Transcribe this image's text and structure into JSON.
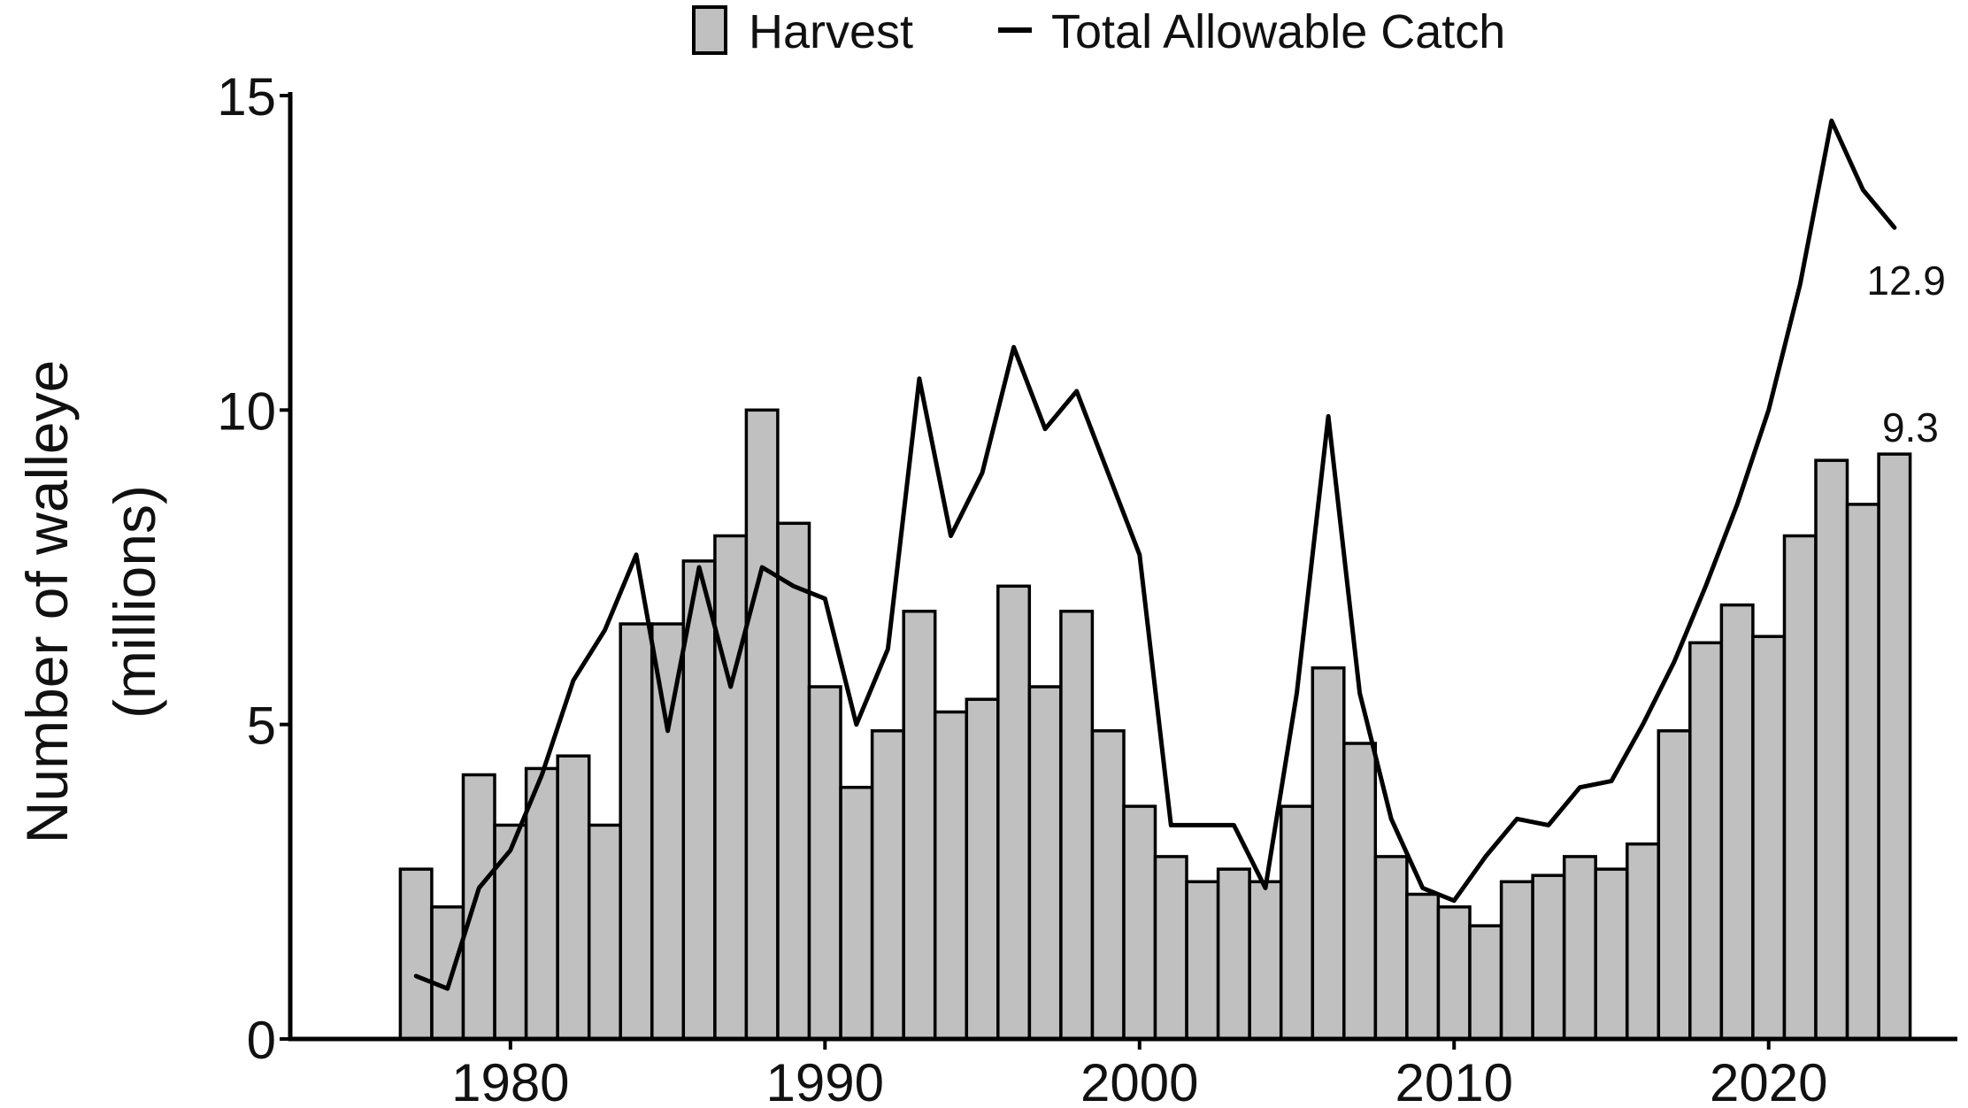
{
  "chart_data": {
    "type": "bar",
    "title": "",
    "xlabel": "",
    "ylabel_line1": "Number of walleye",
    "ylabel_line2": "(millions)",
    "ylim": [
      0,
      15
    ],
    "xlim": [
      1973,
      2026
    ],
    "yticks": [
      0,
      5,
      10,
      15
    ],
    "xticks": [
      1980,
      1990,
      2000,
      2010,
      2020
    ],
    "grid": false,
    "legend": {
      "placement": "top-center",
      "items": [
        {
          "label": "Harvest",
          "symbol": "bar"
        },
        {
          "label": "Total Allowable Catch",
          "symbol": "line"
        }
      ]
    },
    "colors": {
      "bar_fill": "#c0c0c0",
      "bar_stroke": "#000000",
      "line": "#000000"
    },
    "series": [
      {
        "name": "Harvest",
        "type": "bar",
        "x": [
          1977,
          1978,
          1979,
          1980,
          1981,
          1982,
          1983,
          1984,
          1985,
          1986,
          1987,
          1988,
          1989,
          1990,
          1991,
          1992,
          1993,
          1994,
          1995,
          1996,
          1997,
          1998,
          1999,
          2000,
          2001,
          2002,
          2003,
          2004,
          2005,
          2006,
          2007,
          2008,
          2009,
          2010,
          2011,
          2012,
          2013,
          2014,
          2015,
          2016,
          2017,
          2018,
          2019,
          2020,
          2021,
          2022,
          2023,
          2024
        ],
        "values": [
          2.7,
          2.1,
          4.2,
          3.4,
          4.3,
          4.5,
          3.4,
          6.6,
          6.6,
          7.6,
          8.0,
          10.0,
          8.2,
          5.6,
          4.0,
          4.9,
          6.8,
          5.2,
          5.4,
          7.2,
          5.6,
          6.8,
          4.9,
          3.7,
          2.9,
          2.5,
          2.7,
          2.5,
          3.7,
          5.9,
          4.7,
          2.9,
          2.3,
          2.1,
          1.8,
          2.5,
          2.6,
          2.9,
          2.7,
          3.1,
          4.9,
          6.3,
          6.9,
          6.4,
          8.0,
          9.2,
          8.5,
          9.3
        ]
      },
      {
        "name": "Total Allowable Catch",
        "type": "line",
        "x": [
          1977,
          1978,
          1979,
          1980,
          1981,
          1982,
          1983,
          1984,
          1985,
          1986,
          1987,
          1988,
          1989,
          1990,
          1991,
          1992,
          1993,
          1994,
          1995,
          1996,
          1997,
          1998,
          1999,
          2000,
          2001,
          2002,
          2003,
          2004,
          2005,
          2006,
          2007,
          2008,
          2009,
          2010,
          2011,
          2012,
          2013,
          2014,
          2015,
          2016,
          2017,
          2018,
          2019,
          2020,
          2021,
          2022,
          2023,
          2024
        ],
        "values": [
          1.0,
          0.8,
          2.4,
          3.0,
          4.2,
          5.7,
          6.5,
          7.7,
          4.9,
          7.5,
          5.6,
          7.5,
          7.2,
          7.0,
          5.0,
          6.2,
          10.5,
          8.0,
          9.0,
          11.0,
          9.7,
          10.3,
          9.0,
          7.7,
          3.4,
          3.4,
          3.4,
          2.4,
          5.5,
          9.9,
          5.5,
          3.5,
          2.4,
          2.2,
          2.9,
          3.5,
          3.4,
          4.0,
          4.1,
          5.0,
          6.0,
          7.2,
          8.5,
          10.0,
          12.0,
          14.6,
          13.5,
          12.9
        ]
      }
    ],
    "annotations": [
      {
        "series": "Total Allowable Catch",
        "x": 2024,
        "text": "12.9"
      },
      {
        "series": "Harvest",
        "x": 2024,
        "text": "9.3"
      }
    ]
  }
}
